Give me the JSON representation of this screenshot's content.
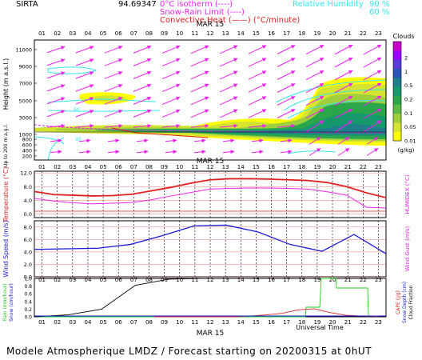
{
  "header": {
    "station": "SIRTA",
    "station_code": "94.69347",
    "legend_isotherm": "0°C isotherm (----)",
    "legend_snow_rain": "Snow-Rain Limit (----)",
    "legend_convective": "Convective Heat (——) (°C/minute)",
    "legend_rh": "Relative Humidity",
    "rh_90": "90 %",
    "rh_60": "60 %"
  },
  "footer": {
    "forecast_text": "Modele Atmospherique LMDZ / Forecast starting on 20200315 at 0hUT"
  },
  "hours": [
    "01",
    "02",
    "03",
    "04",
    "05",
    "06",
    "07",
    "08",
    "09",
    "10",
    "11",
    "12",
    "13",
    "14",
    "15",
    "16",
    "17",
    "18",
    "19",
    "20",
    "21",
    "22",
    "23"
  ],
  "date_label": "MAR 15",
  "colors": {
    "cyan": "#33e6ee",
    "magenta": "#ee22ee",
    "red": "#e02020",
    "blue": "#1a1adc",
    "green": "#22cc22",
    "black": "#000000"
  },
  "chart_data": [
    {
      "type": "heatmap",
      "ylabel": "Height (m a.s.l.)",
      "ylabel2": "Up to 200 m a.g.l.",
      "yticks": [
        "11000",
        "9000",
        "7000",
        "5000",
        "3000",
        "1000",
        "800",
        "600",
        "400",
        "200"
      ],
      "colorbar_title": "Clouds",
      "colorbar_unit": "(g/kg)",
      "colorbar_ticks": [
        "2",
        "1",
        "0.5",
        "0.2",
        "0.1",
        "0.05",
        "0.01"
      ],
      "colorbar_colors": [
        "#cc00cc",
        "#9900ff",
        "#5b3cd9",
        "#2a54b5",
        "#1e7f8a",
        "#16986d",
        "#2aa64b",
        "#5cbb45",
        "#9fd03c",
        "#d4e430",
        "#ffff00"
      ],
      "contour_labels": [
        "60",
        "90",
        "60"
      ]
    },
    {
      "type": "line",
      "ylabel": "Temperature (°C)",
      "ylabel2": "HUMIDEX (°C)",
      "yticks": [
        "12.0",
        "8.0",
        "4.0",
        "0.0"
      ],
      "ylim": [
        -1,
        12.5
      ],
      "series": [
        {
          "values": [
            6.6,
            5.7,
            5.5,
            5.3,
            5.4,
            5.8,
            6.8,
            7.8,
            9.0,
            10.0,
            10.3,
            10.3,
            10.2,
            10.0,
            9.8,
            9.2,
            8.0,
            6.2,
            4.8
          ]
        },
        {
          "values": [
            4.6,
            3.8,
            3.3,
            3.0,
            3.2,
            3.4,
            4.2,
            5.3,
            6.3,
            7.3,
            7.5,
            7.6,
            7.6,
            7.5,
            7.3,
            6.5,
            5.5,
            2.0,
            1.8
          ]
        }
      ]
    },
    {
      "type": "line",
      "ylabel": "Wind Speed (m/s)",
      "ylabel2": "Wind Gust (m/s)",
      "yticks": [
        "8.0",
        "6.0",
        "4.0",
        "2.0",
        "0.0"
      ],
      "ylim": [
        0,
        9
      ],
      "series": [
        {
          "values": [
            4.4,
            4.5,
            4.6,
            5.2,
            6.6,
            8.2,
            8.3,
            7.2,
            5.2,
            4.1,
            6.8,
            3.7
          ]
        }
      ]
    },
    {
      "type": "line",
      "ylabel": "Rain (mm/hour)",
      "ylabel2": "Snow (cm/hour)",
      "ylabel3": "CAPE (J/g)",
      "ylabel4": "Snow Depth (cm)",
      "ylabel5": "Cloud Fraction",
      "xlabel": "Universal Time",
      "yticks": [
        "1.0",
        "0.8",
        "0.6",
        "0.4",
        "0.2",
        "0.0"
      ],
      "ylim": [
        0,
        1
      ],
      "series": [
        {
          "values": [
            0.0,
            0.05,
            0.2,
            0.82,
            0.98,
            1.0
          ]
        },
        {
          "values": [
            0,
            0,
            0,
            0,
            0,
            0,
            0.02,
            0.05,
            0.09,
            0.18,
            0.21,
            0.11,
            0.04,
            0.02,
            0.01
          ]
        },
        {
          "values": [
            0,
            0,
            0,
            0,
            0,
            0,
            0,
            0,
            0.25,
            0.25,
            1.0,
            1.0,
            0.75,
            0.75,
            0
          ]
        }
      ]
    }
  ]
}
